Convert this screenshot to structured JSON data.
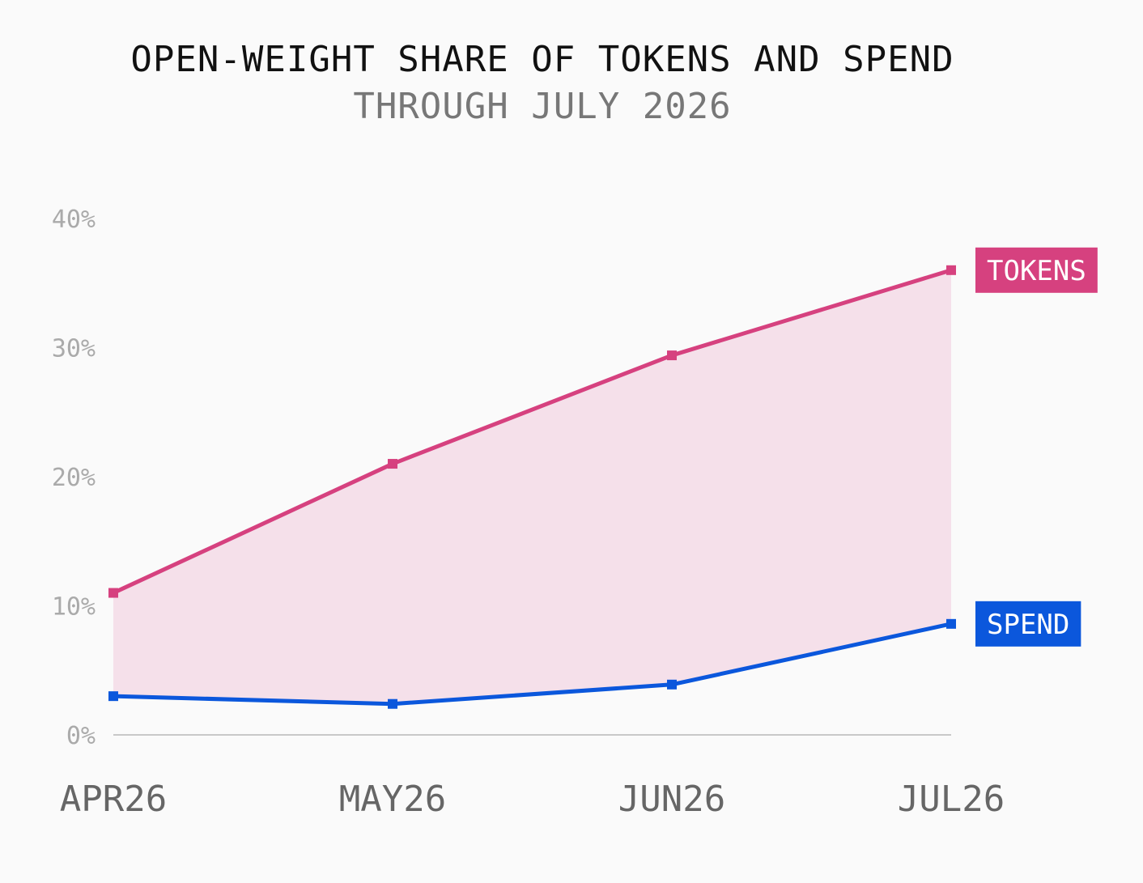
{
  "chart_data": {
    "type": "line",
    "title": "OPEN-WEIGHT SHARE OF TOKENS AND SPEND",
    "subtitle": "THROUGH JULY 2026",
    "categories": [
      "APR26",
      "MAY26",
      "JUN26",
      "JUL26"
    ],
    "y_ticks": [
      "0%",
      "10%",
      "20%",
      "30%",
      "40%"
    ],
    "ylim": [
      0,
      40
    ],
    "grid": false,
    "series": [
      {
        "name": "TOKENS",
        "values": [
          11,
          21,
          29.4,
          36
        ],
        "color": "#d6417f"
      },
      {
        "name": "SPEND",
        "values": [
          3,
          2.4,
          3.9,
          8.6
        ],
        "color": "#0b57dc"
      }
    ],
    "fill_between": {
      "color": "#f5e0ea"
    },
    "axis_color": "#c8c8c8"
  }
}
